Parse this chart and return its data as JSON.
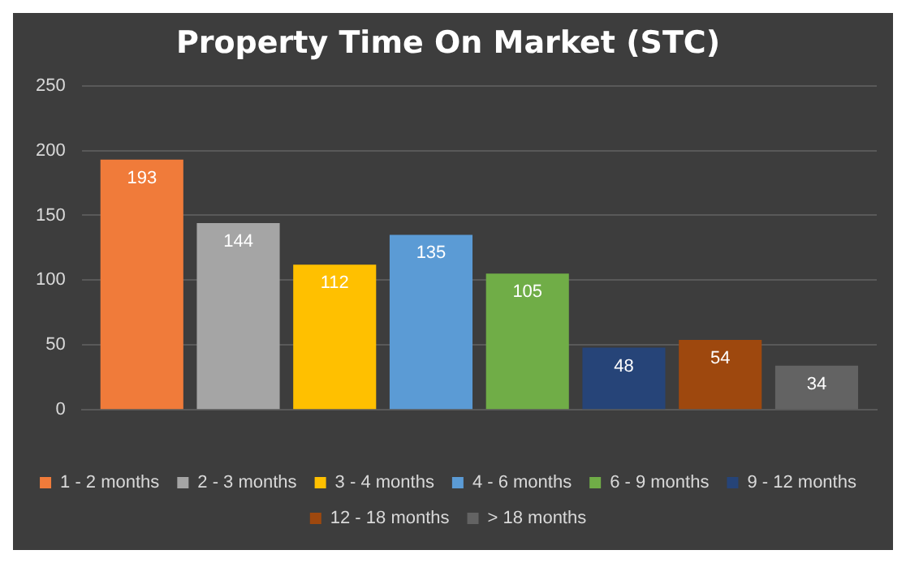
{
  "chart_data": {
    "type": "bar",
    "title": "Property Time On Market (STC)",
    "categories": [
      null
    ],
    "series": [
      {
        "name": "1 - 2 months",
        "color": "#f07b3a",
        "values": [
          193
        ]
      },
      {
        "name": "2 - 3 months",
        "color": "#a5a5a5",
        "values": [
          144
        ]
      },
      {
        "name": "3 - 4 months",
        "color": "#ffc000",
        "values": [
          112
        ]
      },
      {
        "name": "4 - 6 months",
        "color": "#5b9bd5",
        "values": [
          135
        ]
      },
      {
        "name": "6 - 9 months",
        "color": "#70ad47",
        "values": [
          105
        ]
      },
      {
        "name": "9 - 12 months",
        "color": "#264478",
        "values": [
          48
        ]
      },
      {
        "name": "12 - 18 months",
        "color": "#9e480e",
        "values": [
          54
        ]
      },
      {
        "name": "> 18 months",
        "color": "#636363",
        "values": [
          34
        ]
      }
    ],
    "ylim": [
      0,
      250
    ],
    "yticks": [
      0,
      50,
      100,
      150,
      200,
      250
    ],
    "grid": "y",
    "legend": "bottom",
    "data_labels": true
  }
}
